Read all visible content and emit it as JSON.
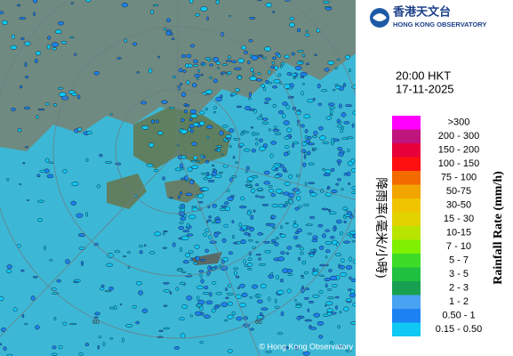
{
  "header": {
    "org_chinese": "香港天文台",
    "org_english": "HONG KONG OBSERVATORY"
  },
  "time": "20:00 HKT",
  "date": "17-11-2025",
  "legend": {
    "title_english": "Rainfall Rate (mm/h)",
    "title_chinese": "降雨率(毫米/小時)",
    "items": [
      {
        "label": ">300",
        "color": "#ff00ff"
      },
      {
        "label": "200 - 300",
        "color": "#c0147f"
      },
      {
        "label": "150 - 200",
        "color": "#e8003a"
      },
      {
        "label": "100 - 150",
        "color": "#ff1010"
      },
      {
        "label": "75 - 100",
        "color": "#f26a00"
      },
      {
        "label": "50-75",
        "color": "#f2a400"
      },
      {
        "label": "30-50",
        "color": "#f0c400"
      },
      {
        "label": "15 - 30",
        "color": "#e2d200"
      },
      {
        "label": "10-15",
        "color": "#b8e400"
      },
      {
        "label": "7 - 10",
        "color": "#7ef000"
      },
      {
        "label": "5 - 7",
        "color": "#3cdc28"
      },
      {
        "label": "3 - 5",
        "color": "#20c040"
      },
      {
        "label": "2 - 3",
        "color": "#18a050"
      },
      {
        "label": "1 - 2",
        "color": "#4aa2f2"
      },
      {
        "label": "0.50 - 1",
        "color": "#1c82f2"
      },
      {
        "label": "0.15 - 0.50",
        "color": "#10c8f4"
      }
    ]
  },
  "map": {
    "range_labels": [
      "60",
      "60"
    ]
  },
  "copyright": "© Hong Kong Observatory"
}
